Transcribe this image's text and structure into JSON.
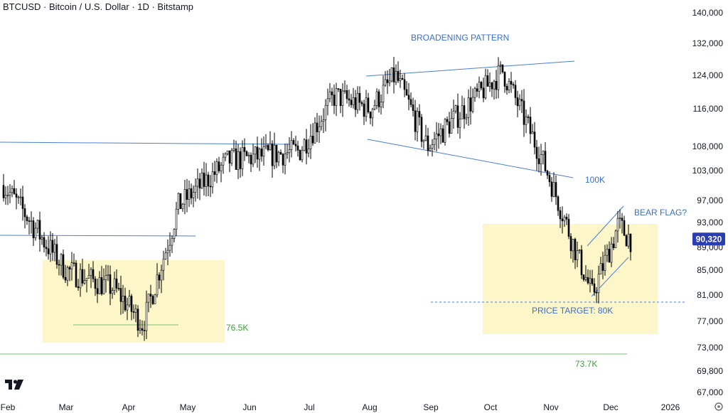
{
  "chart_data": {
    "type": "candlestick",
    "title": "BTCUSD · Bitcoin / U.S. Dollar · 1D · Bitstamp",
    "x_labels": [
      "Feb",
      "Mar",
      "Apr",
      "May",
      "Jun",
      "Jul",
      "Aug",
      "Sep",
      "Oct",
      "Nov",
      "Dec",
      "2026"
    ],
    "y_ticks": [
      "140,000",
      "132,000",
      "124,000",
      "116,000",
      "108,000",
      "103,000",
      "97,000",
      "93,000",
      "89,000",
      "85,000",
      "81,000",
      "77,000",
      "73,000",
      "69,800",
      "67,000"
    ],
    "y_scale": "log",
    "ylim": [
      66000,
      145000
    ],
    "last_price": "90,320",
    "price_series_approx": [
      {
        "date": "Feb",
        "price": 100000
      },
      {
        "date": "Mar",
        "price": 85000
      },
      {
        "date": "Apr",
        "price": 82000
      },
      {
        "date": "Apr",
        "price": 76500
      },
      {
        "date": "May",
        "price": 96000
      },
      {
        "date": "Jun",
        "price": 105000
      },
      {
        "date": "Jul",
        "price": 107000
      },
      {
        "date": "Jul",
        "price": 119000
      },
      {
        "date": "Aug",
        "price": 116000
      },
      {
        "date": "Aug",
        "price": 124000
      },
      {
        "date": "Sep",
        "price": 108000
      },
      {
        "date": "Oct",
        "price": 125000
      },
      {
        "date": "Nov",
        "price": 106000
      },
      {
        "date": "Nov",
        "price": 81000
      },
      {
        "date": "Dec",
        "price": 92500
      },
      {
        "date": "Dec",
        "price": 90320
      }
    ],
    "annotations": {
      "broadening_pattern": "BROADENING PATTERN",
      "level_100k": "100K",
      "bear_flag": "BEAR FLAG?",
      "price_target": "PRICE TARGET: 80K",
      "level_76_5k": "76.5K",
      "level_73_7k": "73.7K"
    },
    "colors": {
      "candle": "#000000",
      "trendline": "#4a7fd4",
      "support": "#7cc46b",
      "highlight": "#fdf6c9",
      "annotation_text": "#3a6fc9",
      "support_text": "#3f9f3f",
      "price_badge": "#2a3db3",
      "axis_text": "#131722"
    }
  }
}
